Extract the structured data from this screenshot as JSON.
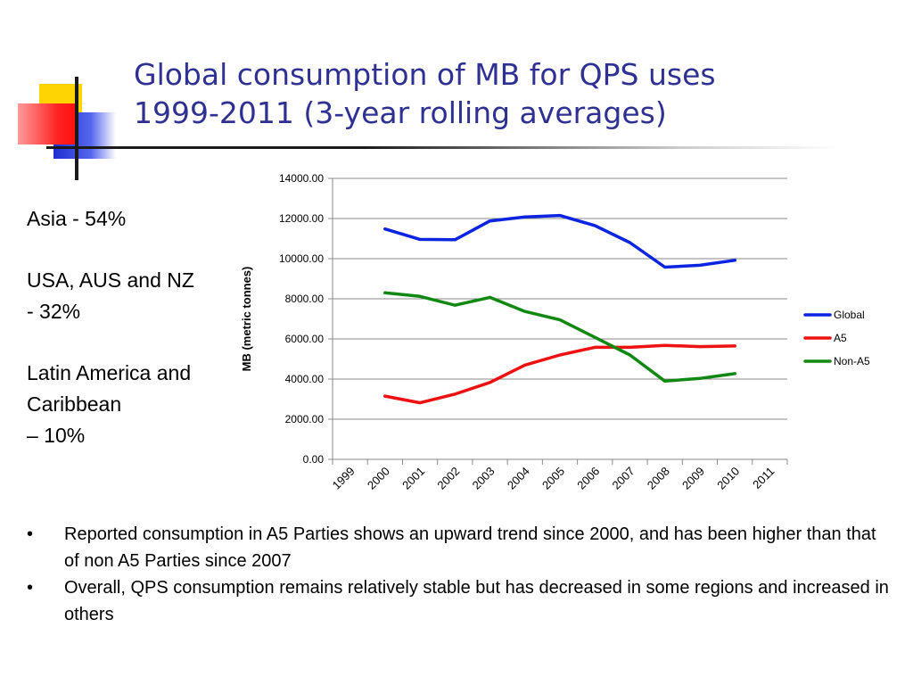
{
  "slide": {
    "title_lines": [
      "Global consumption of MB for QPS uses",
      "1999-2011 (3-year rolling averages)"
    ],
    "side_items": [
      "Asia - 54%",
      "USA, AUS and NZ\n- 32%",
      "Latin America and\nCaribbean\n – 10%"
    ],
    "bullets": [
      "Reported consumption in A5 Parties shows an upward trend since 2000, and has been higher than that of non A5 Parties since 2007",
      "Overall, QPS consumption remains relatively stable but has decreased in some regions and increased in others"
    ],
    "bullet_symbol": "•",
    "colors": {
      "title": "#2e3192",
      "deco_yellow": "#ffd700",
      "deco_blue": "#3344cc",
      "deco_red": "#ff3333"
    }
  },
  "chart_data": {
    "type": "line",
    "title": "",
    "ylabel": "MB (metric tonnes)",
    "xlabel": "",
    "categories": [
      "1999",
      "2000",
      "2001",
      "2002",
      "2003",
      "2004",
      "2005",
      "2006",
      "2007",
      "2008",
      "2009",
      "2010",
      "2011"
    ],
    "ylim": [
      0,
      14000
    ],
    "yticks": [
      "0.00",
      "2000.00",
      "4000.00",
      "6000.00",
      "8000.00",
      "10000.00",
      "12000.00",
      "14000.00"
    ],
    "grid": true,
    "legend_position": "right",
    "series": [
      {
        "name": "Global",
        "color": "#0b24e0",
        "values": [
          null,
          11480,
          10960,
          10940,
          11880,
          12080,
          12150,
          11650,
          10800,
          9580,
          9670,
          9920,
          null
        ]
      },
      {
        "name": "A5",
        "color": "#ee1111",
        "values": [
          null,
          3150,
          2820,
          3250,
          3830,
          4700,
          5200,
          5580,
          5580,
          5680,
          5620,
          5650,
          null
        ]
      },
      {
        "name": "Non-A5",
        "color": "#118811",
        "values": [
          null,
          8300,
          8120,
          7680,
          8070,
          7370,
          6950,
          6080,
          5200,
          3900,
          4030,
          4270,
          null
        ]
      }
    ]
  }
}
